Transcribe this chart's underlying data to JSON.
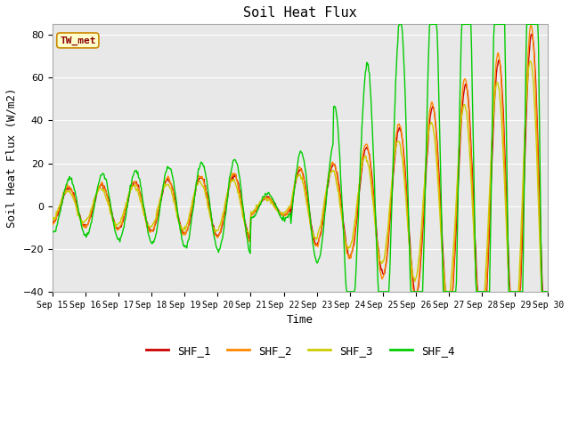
{
  "title": "Soil Heat Flux",
  "xlabel": "Time",
  "ylabel": "Soil Heat Flux (W/m2)",
  "annotation": "TW_met",
  "annotation_color": "#8b0000",
  "annotation_bg": "#ffffcc",
  "annotation_border": "#cc8800",
  "ylim": [
    -40,
    85
  ],
  "yticks": [
    -40,
    -20,
    0,
    20,
    40,
    60,
    80
  ],
  "fig_bg": "#ffffff",
  "plot_bg": "#e8e8e8",
  "line_colors": {
    "SHF_1": "#cc0000",
    "SHF_2": "#ff8800",
    "SHF_3": "#cccc00",
    "SHF_4": "#00cc00"
  },
  "legend_labels": [
    "SHF_1",
    "SHF_2",
    "SHF_3",
    "SHF_4"
  ],
  "n_points": 720
}
